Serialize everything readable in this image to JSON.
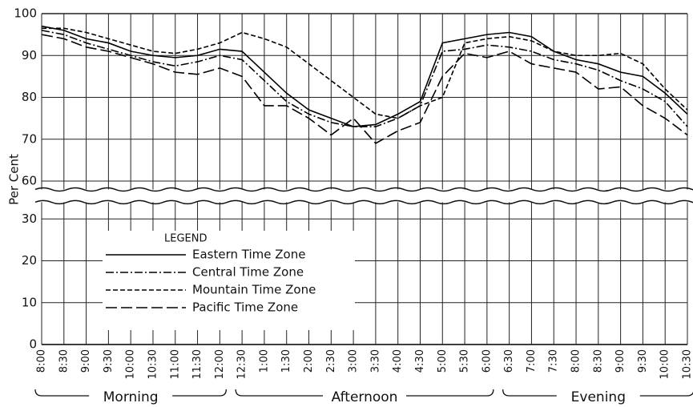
{
  "chart_data": {
    "type": "line",
    "ylabel": "Per Cent",
    "categories": [
      "8:00",
      "8:30",
      "9:00",
      "9:30",
      "10:00",
      "10:30",
      "11:00",
      "11:30",
      "12:00",
      "12:30",
      "1:00",
      "1:30",
      "2:00",
      "2:30",
      "3:00",
      "3:30",
      "4:00",
      "4:30",
      "5:00",
      "5:30",
      "6:00",
      "6:30",
      "7:00",
      "7:30",
      "8:00",
      "8:30",
      "9:00",
      "9:30",
      "10:00",
      "10:30"
    ],
    "groups": [
      "Morning",
      "Afternoon",
      "Evening"
    ],
    "ylim": [
      0,
      100
    ],
    "axis_break": [
      34,
      58
    ],
    "yticks": [
      0,
      10,
      20,
      30,
      60,
      70,
      80,
      90,
      100
    ],
    "grid": true,
    "legend_title": "LEGEND",
    "series": [
      {
        "name": "Eastern Time Zone",
        "color": "#000000",
        "style": "solid",
        "values": [
          97,
          96,
          94,
          93,
          91,
          90,
          89.5,
          90,
          91.5,
          91,
          86,
          81,
          77,
          75,
          73,
          73.5,
          76,
          79,
          93,
          94,
          95,
          95.5,
          94.5,
          91,
          89,
          88,
          86,
          85,
          81,
          76
        ]
      },
      {
        "name": "Central Time Zone",
        "color": "#000000",
        "style": "dash-dot",
        "values": [
          96,
          95,
          93,
          91.5,
          90,
          88.5,
          87.5,
          88.5,
          90,
          89,
          84,
          79,
          76,
          74,
          73,
          73,
          75,
          78,
          91,
          91.5,
          92.5,
          92,
          91,
          89,
          88,
          86.5,
          84,
          82,
          79,
          73
        ]
      },
      {
        "name": "Mountain Time Zone",
        "color": "#000000",
        "style": "dashed",
        "values": [
          96.5,
          96.5,
          95.5,
          94,
          92.5,
          91,
          90.5,
          91.5,
          93,
          95.5,
          94,
          92,
          88,
          84,
          80,
          76,
          75,
          78,
          80,
          93,
          94,
          94.5,
          93.5,
          91,
          90,
          90,
          90.5,
          88,
          82,
          77
        ]
      },
      {
        "name": "Pacific Time Zone",
        "color": "#000000",
        "style": "long-dashed",
        "values": [
          95,
          94,
          92,
          91,
          89.5,
          88,
          86,
          85.5,
          87,
          85,
          78,
          78,
          75,
          71,
          75,
          69,
          72,
          74,
          85,
          90.5,
          89.5,
          91,
          88,
          87,
          86,
          82,
          82.5,
          78,
          75,
          71
        ]
      }
    ]
  }
}
